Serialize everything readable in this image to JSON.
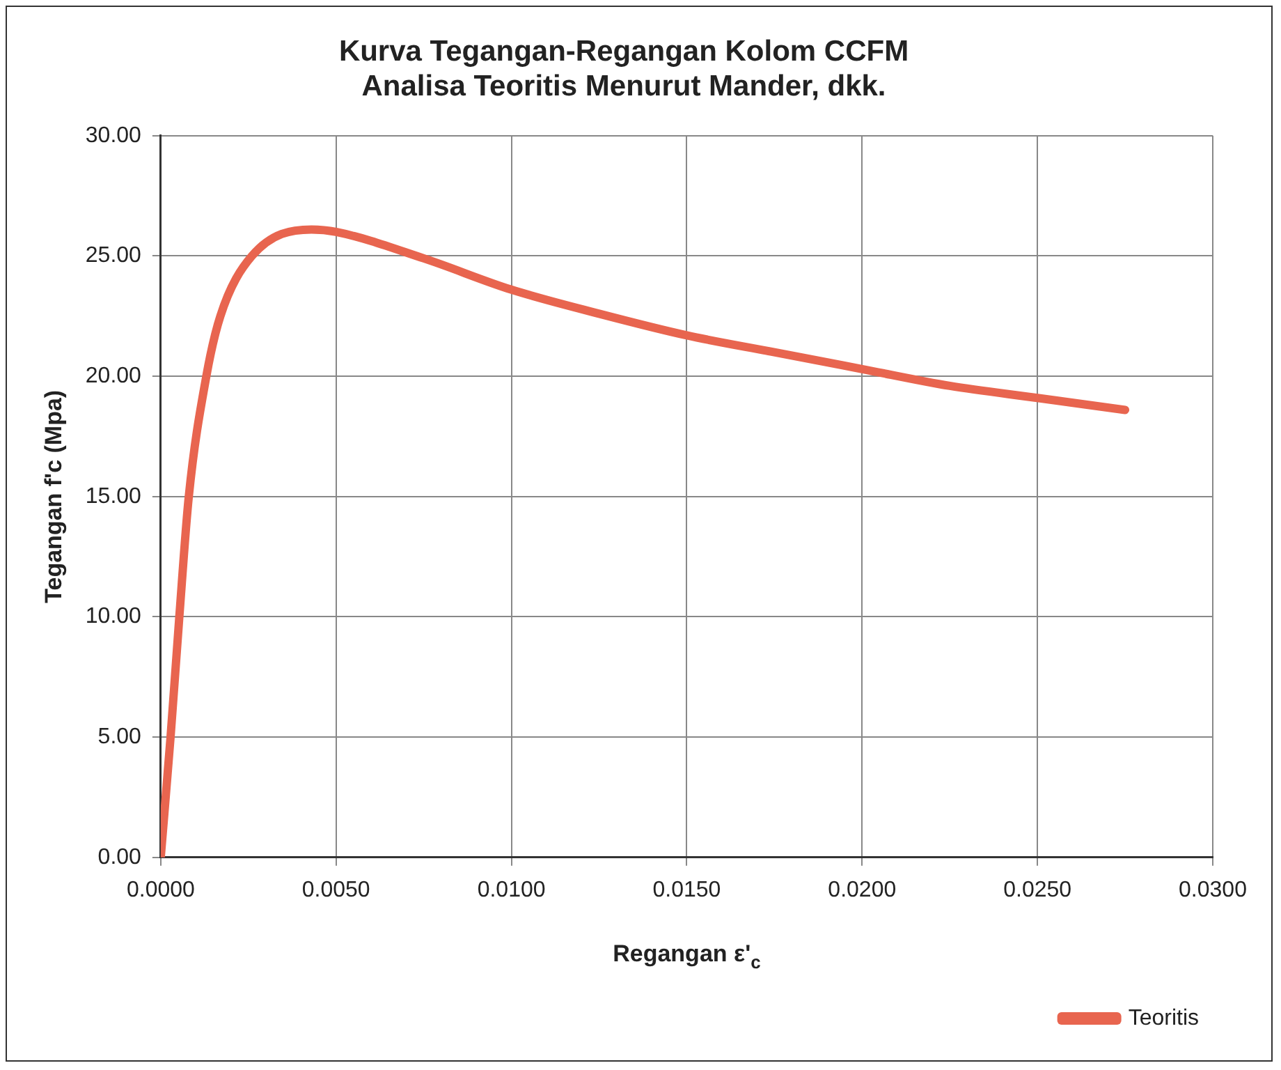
{
  "chart_data": {
    "type": "line",
    "title": "Kurva Tegangan-Regangan Kolom CCFM\nAnalisa Teoritis Menurut Mander, dkk.",
    "xlabel": "Regangan ε'$_{c}$",
    "ylabel": "Tegangan f'c (Mpa)",
    "x": [
      0,
      0.00028,
      0.00053,
      0.0008,
      0.0013,
      0.0017,
      0.0026,
      0.0043,
      0.005,
      0.0075,
      0.01,
      0.0125,
      0.015,
      0.0175,
      0.02,
      0.0225,
      0.025,
      0.0275
    ],
    "series": [
      {
        "name": "Teoritis",
        "color": "#e8654f",
        "values": [
          0,
          5,
          10,
          15,
          20,
          22.5,
          25,
          26.1,
          26,
          24.9,
          23.6,
          22.6,
          21.7,
          21,
          20.3,
          19.6,
          19.1,
          18.6
        ]
      }
    ],
    "xlim": [
      0,
      0.03
    ],
    "xticks": [
      {
        "value": 0,
        "label": "0.0000"
      },
      {
        "value": 0.005,
        "label": "0.0050"
      },
      {
        "value": 0.01,
        "label": "0.0100"
      },
      {
        "value": 0.015,
        "label": "0.0150"
      },
      {
        "value": 0.02,
        "label": "0.0200"
      },
      {
        "value": 0.025,
        "label": "0.0250"
      },
      {
        "value": 0.03,
        "label": "0.0300"
      }
    ],
    "ylim": [
      0,
      30
    ],
    "yticks": [
      {
        "value": 0,
        "label": "0.00"
      },
      {
        "value": 5,
        "label": "5.00"
      },
      {
        "value": 10,
        "label": "10.00"
      },
      {
        "value": 15,
        "label": "15.00"
      },
      {
        "value": 20,
        "label": "20.00"
      },
      {
        "value": 25,
        "label": "25.00"
      },
      {
        "value": 30,
        "label": "30.00"
      }
    ],
    "grid": true,
    "legend": "bottom right",
    "marker": "none",
    "line_style": "solid"
  }
}
